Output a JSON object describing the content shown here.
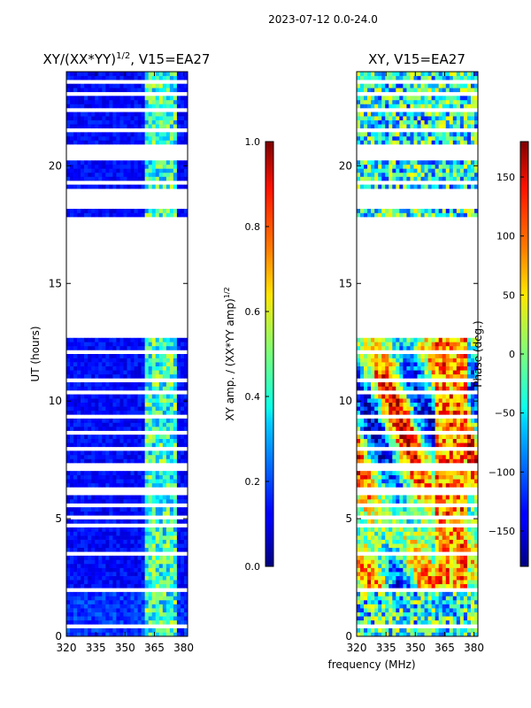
{
  "suptitle": "2023-07-12 0.0-24.0",
  "chart_data": [
    {
      "type": "heatmap",
      "title": "XY/(XX*YY)",
      "title_superscript": "1/2",
      "title_suffix": ", V15=EA27",
      "xlabel": "",
      "ylabel": "UT (hours)",
      "xlim": [
        320,
        382
      ],
      "ylim": [
        0,
        24
      ],
      "xticks": [
        320,
        335,
        350,
        365,
        380
      ],
      "yticks": [
        0,
        5,
        10,
        15,
        20
      ],
      "colorbar": {
        "label": "XY amp. / (XX*YY amp)",
        "label_superscript": "1/2",
        "range": [
          0.0,
          1.0
        ],
        "ticks": [
          "0.0",
          "0.2",
          "0.4",
          "0.6",
          "0.8",
          "1.0"
        ],
        "tick_values": [
          0.0,
          0.2,
          0.4,
          0.6,
          0.8,
          1.0
        ]
      }
    },
    {
      "type": "heatmap",
      "title": "XY, V15=EA27",
      "xlabel": "frequency (MHz)",
      "ylabel": "",
      "xlim": [
        320,
        382
      ],
      "ylim": [
        0,
        24
      ],
      "xticks": [
        320,
        335,
        350,
        365,
        380
      ],
      "yticks": [
        0,
        5,
        10,
        15,
        20
      ],
      "colorbar": {
        "label": "Phase (deg.)",
        "range": [
          -180,
          180
        ],
        "ticks": [
          "150",
          "100",
          "50",
          "0",
          "−50",
          "−100",
          "−150"
        ],
        "tick_values": [
          150,
          100,
          50,
          0,
          -50,
          -100,
          -150
        ]
      }
    }
  ],
  "data_gaps_hours": [
    [
      17.65,
      17.85
    ],
    [
      18.18,
      19.02
    ],
    [
      20.3,
      20.85
    ],
    [
      12.75,
      17.65
    ],
    [
      1.95,
      2.1
    ]
  ]
}
